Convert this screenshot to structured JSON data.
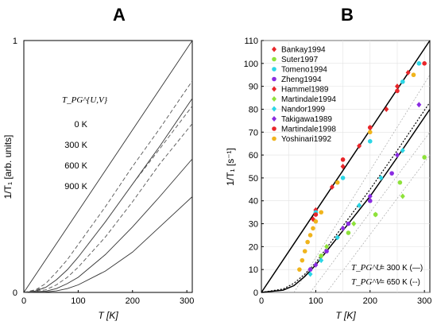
{
  "chart_data": [
    {
      "type": "line",
      "panel_label": "A",
      "xlabel": "T [K]",
      "ylabel": "1/T₁ [arb. units]",
      "xlim": [
        0,
        310
      ],
      "ylim": [
        0,
        1
      ],
      "x_ticks": [
        0,
        100,
        200,
        300
      ],
      "y_ticks": [
        0,
        1
      ],
      "grid": false,
      "annotation_title": "T_PG^{U,V}",
      "legend_labels": [
        "0 K",
        "300 K",
        "600 K",
        "900 K"
      ],
      "series": [
        {
          "label": "0 K",
          "style": "solid",
          "x": [
            0,
            310
          ],
          "y": [
            0,
            1.0
          ]
        },
        {
          "label": "300 K",
          "style": "solid",
          "x": [
            0,
            20,
            40,
            60,
            80,
            100,
            150,
            200,
            250,
            310
          ],
          "y": [
            0,
            0.005,
            0.02,
            0.05,
            0.09,
            0.14,
            0.28,
            0.43,
            0.58,
            0.77
          ]
        },
        {
          "label": "300 K",
          "style": "dashed",
          "x": [
            0,
            20,
            40,
            60,
            80,
            100,
            150,
            200,
            250,
            310
          ],
          "y": [
            0,
            0.008,
            0.035,
            0.08,
            0.13,
            0.19,
            0.34,
            0.5,
            0.65,
            0.84
          ]
        },
        {
          "label": "600 K",
          "style": "solid",
          "x": [
            0,
            40,
            60,
            80,
            100,
            150,
            200,
            250,
            310
          ],
          "y": [
            0,
            0.005,
            0.015,
            0.035,
            0.06,
            0.15,
            0.26,
            0.38,
            0.53
          ]
        },
        {
          "label": "600 K",
          "style": "dashed",
          "x": [
            0,
            40,
            60,
            80,
            100,
            150,
            200,
            250,
            310
          ],
          "y": [
            0,
            0.02,
            0.05,
            0.09,
            0.14,
            0.28,
            0.43,
            0.57,
            0.74
          ]
        },
        {
          "label": "900 K",
          "style": "solid",
          "x": [
            0,
            40,
            60,
            80,
            100,
            150,
            200,
            250,
            310
          ],
          "y": [
            0,
            0.002,
            0.006,
            0.015,
            0.03,
            0.085,
            0.16,
            0.26,
            0.38
          ]
        },
        {
          "label": "900 K",
          "style": "dashed",
          "x": [
            0,
            40,
            60,
            80,
            100,
            150,
            200,
            250,
            310
          ],
          "y": [
            0,
            0.01,
            0.03,
            0.06,
            0.1,
            0.22,
            0.36,
            0.51,
            0.67
          ]
        }
      ]
    },
    {
      "type": "scatter",
      "panel_label": "B",
      "xlabel": "T [K]",
      "ylabel": "1/T₁ [s⁻¹]",
      "xlim": [
        0,
        310
      ],
      "ylim": [
        0,
        110
      ],
      "x_ticks": [
        0,
        100,
        200,
        300
      ],
      "y_ticks": [
        0,
        10,
        20,
        30,
        40,
        50,
        60,
        70,
        80,
        90,
        100,
        110
      ],
      "grid": true,
      "legend_placement": "top-left",
      "annotation_lines": [
        {
          "label": "T_PG^U",
          "text": "= 300 K (—)"
        },
        {
          "label": "T_PG^V",
          "text": "= 650 K (‐‐)"
        }
      ],
      "fit_lines": [
        {
          "style": "solid",
          "x": [
            0,
            310
          ],
          "y": [
            0,
            110
          ]
        },
        {
          "style": "solid",
          "x": [
            0,
            40,
            60,
            80,
            100,
            150,
            200,
            250,
            310
          ],
          "y": [
            0,
            1,
            3,
            7,
            12,
            27,
            42,
            59,
            80
          ]
        },
        {
          "style": "dotted",
          "x": [
            0,
            40,
            60,
            80,
            100,
            150,
            200,
            250,
            310
          ],
          "y": [
            0,
            1.5,
            4,
            8,
            13,
            29,
            45,
            62,
            83
          ]
        }
      ],
      "series": [
        {
          "name": "Bankay1994",
          "color": "#e8262a",
          "marker": "diamond",
          "x": [
            100,
            150,
            200,
            250
          ],
          "y": [
            36,
            55,
            72,
            90
          ]
        },
        {
          "name": "Suter1997",
          "color": "#8ee23a",
          "marker": "circle",
          "x": [
            110,
            160,
            210,
            255,
            300
          ],
          "y": [
            16,
            26,
            34,
            48,
            59
          ]
        },
        {
          "name": "Tomeno1994",
          "color": "#2bd6e6",
          "marker": "circle",
          "x": [
            100,
            150,
            200,
            260,
            290
          ],
          "y": [
            35,
            50,
            66,
            92,
            100
          ]
        },
        {
          "name": "Zheng1994",
          "color": "#8a2be2",
          "marker": "circle",
          "x": [
            90,
            120,
            160,
            200,
            240
          ],
          "y": [
            10,
            18,
            30,
            40,
            52
          ]
        },
        {
          "name": "Hammel1989",
          "color": "#e8262a",
          "marker": "diamond",
          "x": [
            95,
            130,
            180,
            230,
            270
          ],
          "y": [
            32,
            46,
            64,
            80,
            96
          ]
        },
        {
          "name": "Martindale1994",
          "color": "#8ee23a",
          "marker": "diamond",
          "x": [
            120,
            170,
            210,
            260
          ],
          "y": [
            20,
            30,
            34,
            42
          ]
        },
        {
          "name": "Nandor1999",
          "color": "#2bd6e6",
          "marker": "diamond",
          "x": [
            90,
            110,
            140,
            180,
            220,
            260
          ],
          "y": [
            8,
            14,
            24,
            38,
            50,
            62
          ]
        },
        {
          "name": "Takigawa1989",
          "color": "#8a2be2",
          "marker": "diamond",
          "x": [
            100,
            150,
            200,
            250,
            290
          ],
          "y": [
            12,
            28,
            42,
            60,
            82
          ]
        },
        {
          "name": "Martindale1998",
          "color": "#e8262a",
          "marker": "circle",
          "x": [
            100,
            150,
            200,
            250,
            300
          ],
          "y": [
            34,
            58,
            72,
            88,
            100
          ]
        },
        {
          "name": "Yoshinari1992",
          "color": "#f0b41c",
          "marker": "circle",
          "x": [
            70,
            75,
            80,
            85,
            90,
            95,
            100,
            110,
            140,
            200,
            280
          ],
          "y": [
            10,
            14,
            18,
            22,
            25,
            28,
            31,
            35,
            48,
            70,
            95
          ]
        }
      ]
    }
  ]
}
